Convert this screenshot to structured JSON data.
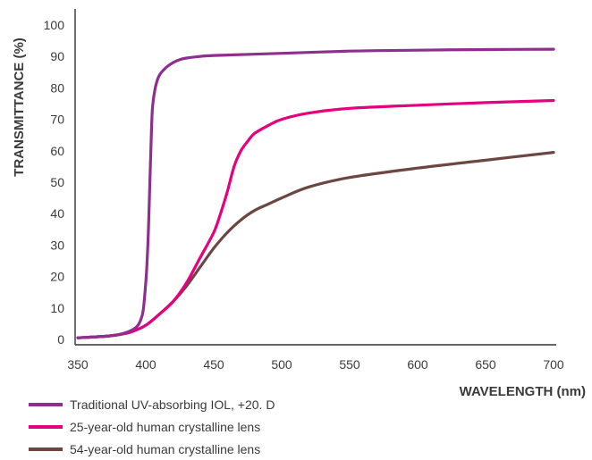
{
  "chart_data": {
    "type": "line",
    "xlabel": "WAVELENGTH (nm)",
    "ylabel": "TRANSMITTANCE (%)",
    "xlim": [
      350,
      700
    ],
    "ylim": [
      0,
      100
    ],
    "xticks": [
      350,
      400,
      450,
      500,
      550,
      600,
      650,
      700
    ],
    "yticks": [
      0,
      10,
      20,
      30,
      40,
      50,
      60,
      70,
      80,
      90,
      100
    ],
    "grid": false,
    "legend_position": "bottom-left",
    "series": [
      {
        "name": "Traditional UV-absorbing IOL, +20. D",
        "color": "#8e2f8f",
        "x": [
          350,
          370,
          380,
          390,
          395,
          398,
          400,
          401,
          402,
          403,
          404,
          405,
          407,
          410,
          415,
          420,
          425,
          430,
          440,
          450,
          500,
          550,
          600,
          650,
          700
        ],
        "y": [
          0.5,
          1.0,
          1.5,
          3,
          5,
          9,
          18,
          25,
          35,
          50,
          64,
          74,
          80,
          84,
          86.5,
          88,
          89,
          89.5,
          90,
          90.3,
          91,
          91.7,
          92,
          92.2,
          92.3
        ]
      },
      {
        "name": "25-year-old human crystalline lens",
        "color": "#e6007e",
        "x": [
          350,
          370,
          380,
          390,
          400,
          410,
          420,
          430,
          440,
          450,
          455,
          460,
          465,
          470,
          475,
          480,
          490,
          500,
          520,
          550,
          600,
          650,
          700
        ],
        "y": [
          0.5,
          1.0,
          1.5,
          2.5,
          4.5,
          8,
          12,
          18,
          26,
          34,
          40,
          47,
          55,
          60,
          63,
          65.5,
          68,
          70,
          72,
          73.5,
          74.5,
          75.3,
          76
        ]
      },
      {
        "name": "54-year-old human crystalline lens",
        "color": "#6b4642",
        "x": [
          350,
          370,
          380,
          390,
          400,
          410,
          420,
          430,
          440,
          450,
          460,
          470,
          480,
          490,
          500,
          520,
          550,
          600,
          650,
          700
        ],
        "y": [
          0.5,
          1.0,
          1.5,
          2.5,
          4.5,
          8,
          12,
          17,
          23,
          29,
          34,
          38,
          41,
          43,
          45,
          48.5,
          51.5,
          54.5,
          57,
          59.5
        ]
      }
    ]
  }
}
